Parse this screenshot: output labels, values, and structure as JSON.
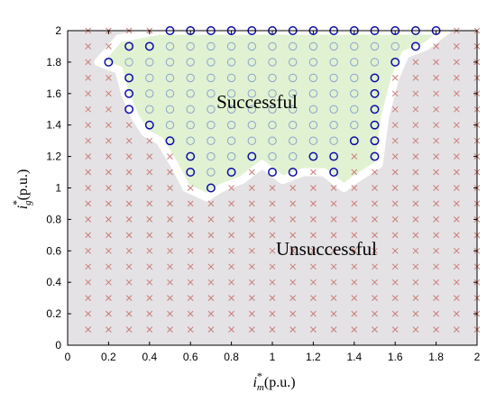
{
  "chart_data": {
    "type": "scatter",
    "xlim": [
      0,
      2
    ],
    "ylim": [
      0,
      2
    ],
    "x_ticks": [
      "0",
      "0.2",
      "0.4",
      "0.6",
      "0.8",
      "1",
      "1.2",
      "1.4",
      "1.6",
      "1.8",
      "2"
    ],
    "y_ticks": [
      "0",
      "0.2",
      "0.4",
      "0.6",
      "0.8",
      "1",
      "1.2",
      "1.4",
      "1.6",
      "1.8",
      "2"
    ],
    "xlabel": {
      "base": "i",
      "sup": "*",
      "sub": "m",
      "unit": "(p.u.)"
    },
    "ylabel": {
      "base": "i",
      "sup": "*",
      "sub": "g",
      "unit": "(p.u.)"
    },
    "annotations": [
      "Successful",
      "Unsuccessful"
    ],
    "grid": false,
    "grid_step": 0.1,
    "successful_columns": [
      {
        "x": 0.2,
        "y_min": 1.8,
        "y_max": 1.8
      },
      {
        "x": 0.3,
        "y_min": 1.5,
        "y_max": 1.9
      },
      {
        "x": 0.4,
        "y_min": 1.4,
        "y_max": 1.9
      },
      {
        "x": 0.5,
        "y_min": 1.3,
        "y_max": 2.0
      },
      {
        "x": 0.6,
        "y_min": 1.1,
        "y_max": 2.0
      },
      {
        "x": 0.7,
        "y_min": 1.0,
        "y_max": 2.0
      },
      {
        "x": 0.8,
        "y_min": 1.1,
        "y_max": 2.0
      },
      {
        "x": 0.9,
        "y_min": 1.2,
        "y_max": 2.0
      },
      {
        "x": 1.0,
        "y_min": 1.1,
        "y_max": 2.0
      },
      {
        "x": 1.1,
        "y_min": 1.1,
        "y_max": 2.0
      },
      {
        "x": 1.2,
        "y_min": 1.2,
        "y_max": 2.0
      },
      {
        "x": 1.3,
        "y_min": 1.1,
        "y_max": 2.0
      },
      {
        "x": 1.4,
        "y_min": 1.3,
        "y_max": 2.0
      },
      {
        "x": 1.5,
        "y_min": 1.2,
        "y_max": 2.0
      },
      {
        "x": 1.6,
        "y_min": 1.8,
        "y_max": 2.0
      },
      {
        "x": 1.7,
        "y_min": 1.9,
        "y_max": 2.0
      },
      {
        "x": 1.8,
        "y_min": 2.0,
        "y_max": 2.0
      }
    ],
    "successful_region": [
      [
        0.15,
        1.8
      ],
      [
        0.25,
        1.95
      ],
      [
        0.45,
        2.0
      ],
      [
        1.85,
        2.0
      ],
      [
        1.75,
        1.9
      ],
      [
        1.65,
        1.85
      ],
      [
        1.6,
        1.7
      ],
      [
        1.55,
        1.45
      ],
      [
        1.52,
        1.15
      ],
      [
        1.4,
        1.05
      ],
      [
        1.35,
        1.0
      ],
      [
        1.25,
        1.1
      ],
      [
        1.15,
        1.1
      ],
      [
        1.05,
        1.05
      ],
      [
        0.95,
        1.15
      ],
      [
        0.85,
        1.05
      ],
      [
        0.75,
        1.0
      ],
      [
        0.68,
        0.94
      ],
      [
        0.58,
        1.0
      ],
      [
        0.52,
        1.15
      ],
      [
        0.45,
        1.3
      ],
      [
        0.38,
        1.35
      ],
      [
        0.33,
        1.45
      ],
      [
        0.28,
        1.6
      ],
      [
        0.25,
        1.75
      ],
      [
        0.15,
        1.8
      ]
    ],
    "colors": {
      "background_region": "#e4e2e5",
      "successful_fill": "#e1f2d2",
      "boundary": "#ffffff",
      "circle_outer": "#0c0ca8",
      "circle_inner": "#8aa2cc",
      "cross": "#c97d78"
    },
    "markers": {
      "successful": "circle",
      "unsuccessful": "x"
    }
  }
}
